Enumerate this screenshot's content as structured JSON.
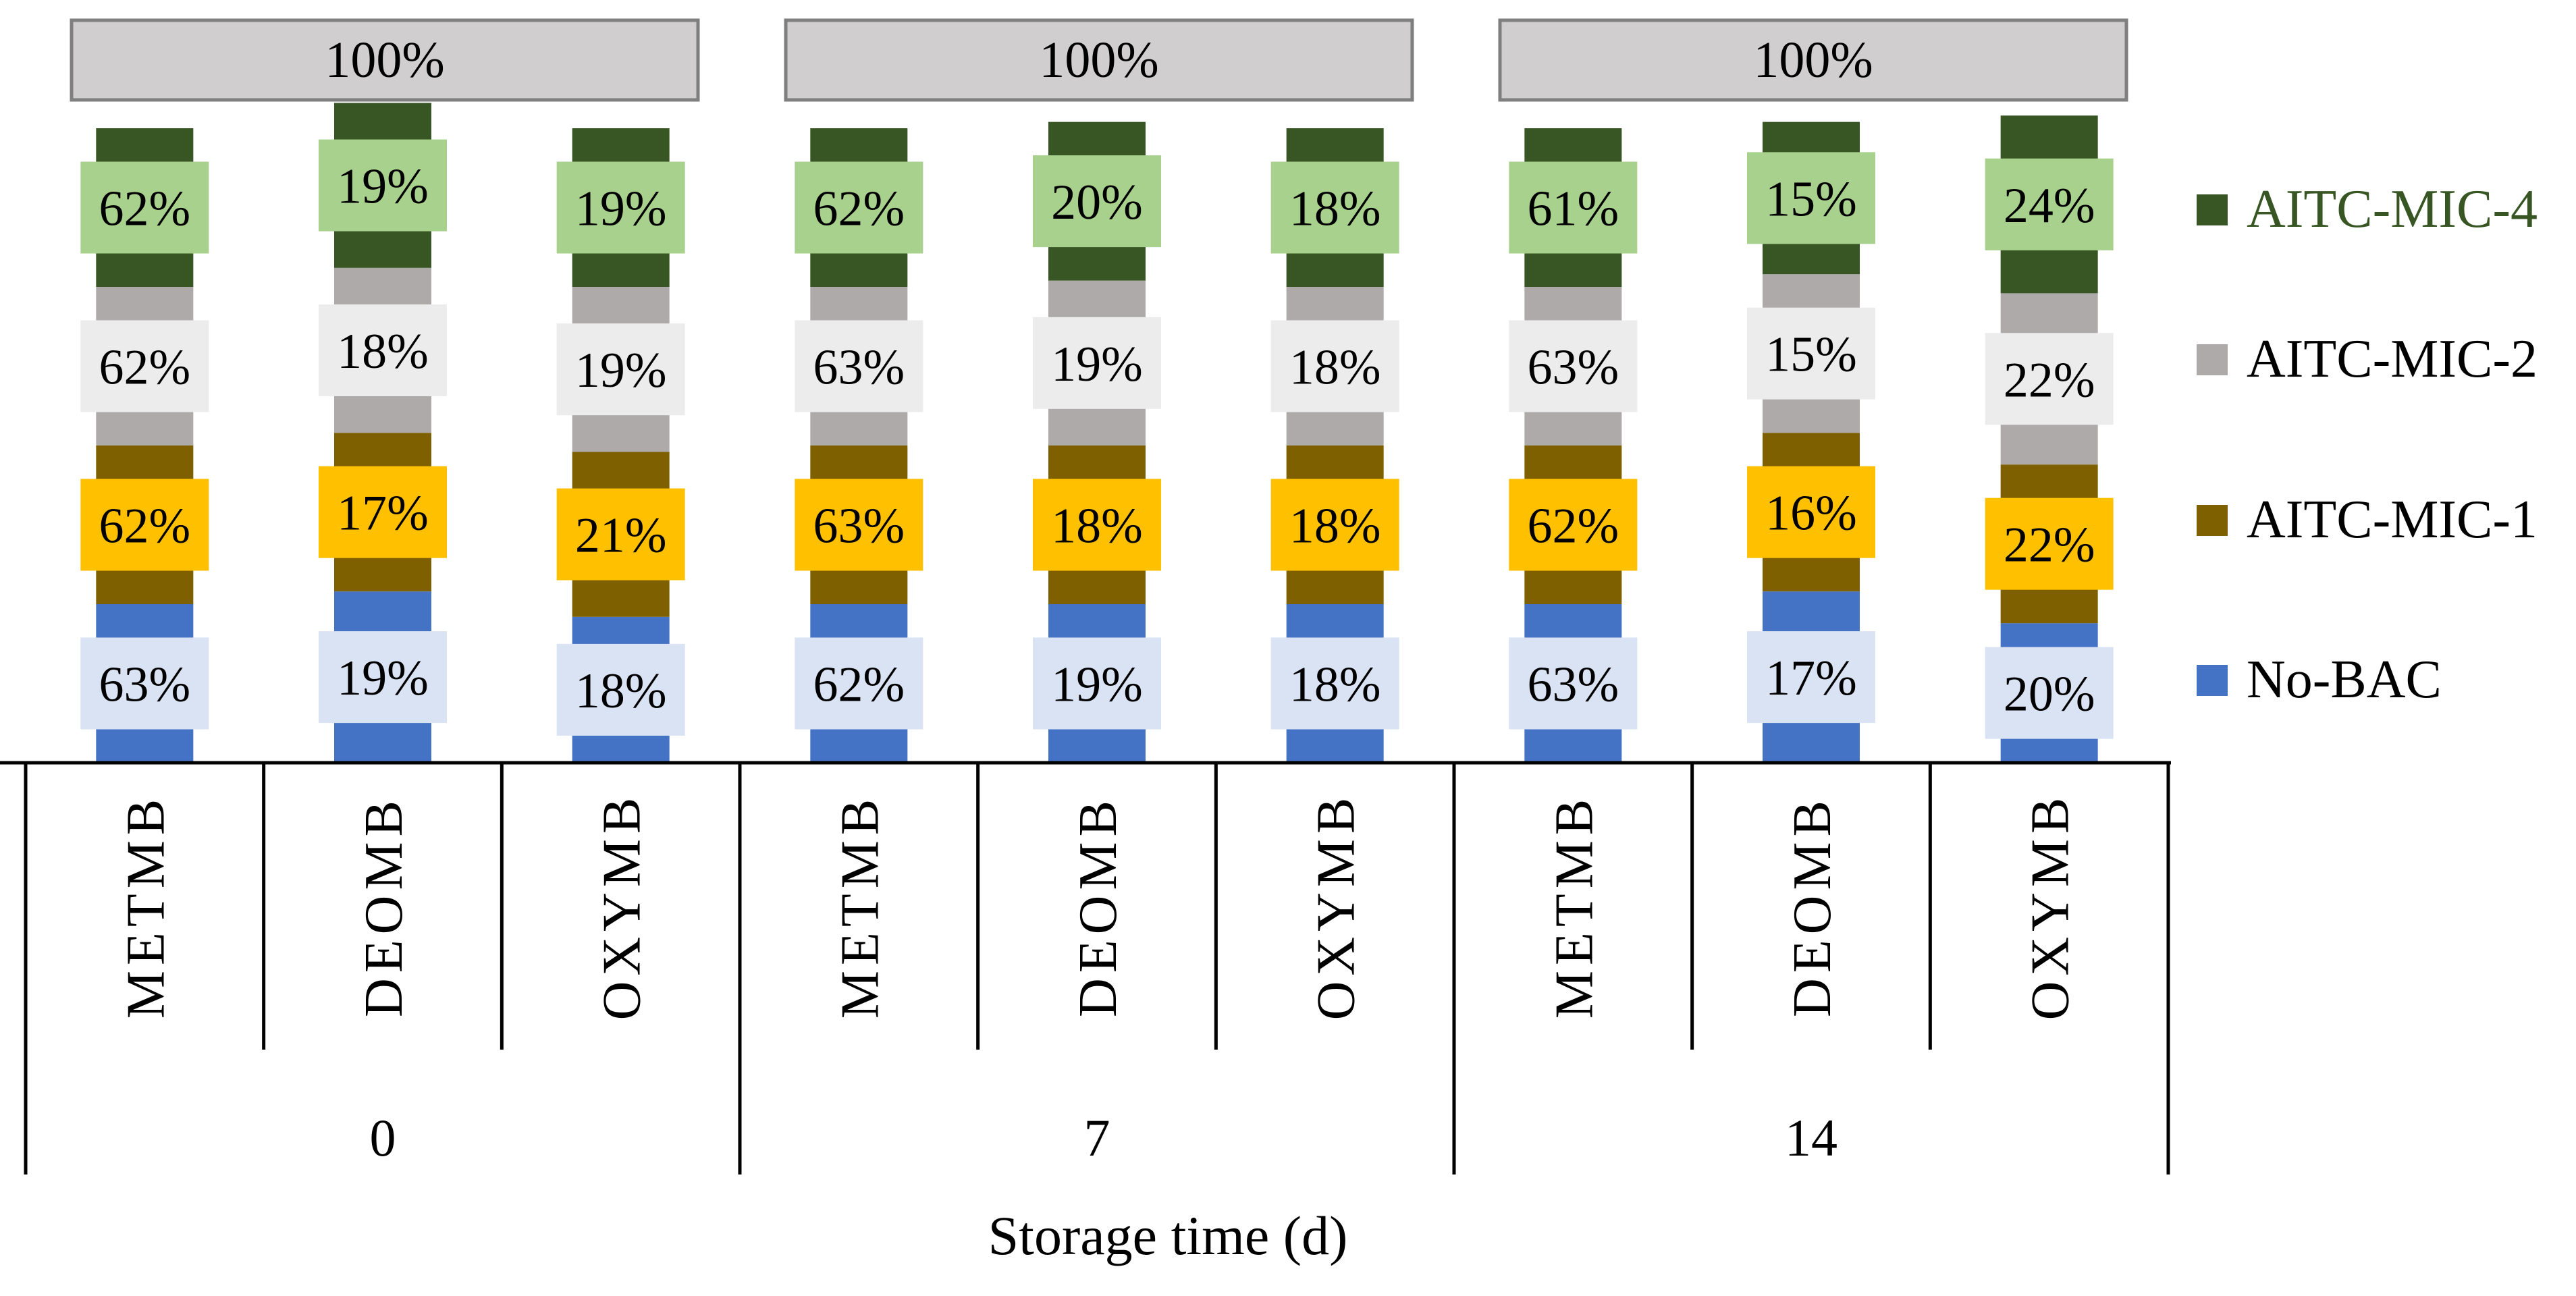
{
  "chart_data": {
    "type": "bar",
    "stacked": true,
    "xlabel": "Storage time (d)",
    "ylabel": "",
    "ylim": [
      0,
      1
    ],
    "grid": false,
    "legend_position": "right",
    "groups": [
      {
        "label": "0",
        "total_label": "100%",
        "categories": [
          "METMB",
          "DEOMB",
          "OXYMB"
        ]
      },
      {
        "label": "7",
        "total_label": "100%",
        "categories": [
          "METMB",
          "DEOMB",
          "OXYMB"
        ]
      },
      {
        "label": "14",
        "total_label": "100%",
        "categories": [
          "METMB",
          "DEOMB",
          "OXYMB"
        ]
      }
    ],
    "series": [
      {
        "name": "No-BAC",
        "color": "#4472c4",
        "label_bg": "#dae3f3",
        "values": [
          0.25,
          0.27,
          0.23,
          0.25,
          0.25,
          0.25,
          0.25,
          0.27,
          0.22
        ],
        "labels": [
          "63%",
          "19%",
          "18%",
          "62%",
          "19%",
          "18%",
          "63%",
          "17%",
          "20%"
        ]
      },
      {
        "name": "AITC-MIC-1",
        "color": "#7f6000",
        "label_bg": "#ffc000",
        "values": [
          0.25,
          0.25,
          0.26,
          0.25,
          0.25,
          0.25,
          0.25,
          0.25,
          0.25
        ],
        "labels": [
          "62%",
          "17%",
          "21%",
          "63%",
          "18%",
          "18%",
          "62%",
          "16%",
          "22%"
        ]
      },
      {
        "name": "AITC-MIC-2",
        "color": "#aeaaaa",
        "label_bg": "#ececec",
        "values": [
          0.25,
          0.26,
          0.26,
          0.25,
          0.26,
          0.25,
          0.25,
          0.25,
          0.27
        ],
        "labels": [
          "62%",
          "18%",
          "19%",
          "63%",
          "19%",
          "18%",
          "63%",
          "15%",
          "22%"
        ]
      },
      {
        "name": "AITC-MIC-4",
        "color": "#375623",
        "label_bg": "#a9d18e",
        "values": [
          0.25,
          0.26,
          0.25,
          0.25,
          0.25,
          0.25,
          0.25,
          0.24,
          0.28
        ],
        "labels": [
          "62%",
          "19%",
          "19%",
          "62%",
          "20%",
          "18%",
          "61%",
          "15%",
          "24%"
        ]
      }
    ]
  },
  "legend": {
    "items": [
      {
        "label": "AITC-MIC-4",
        "color": "#375623",
        "text_color": "#375623"
      },
      {
        "label": "AITC-MIC-2",
        "color": "#aeaaaa",
        "text_color": "#000000"
      },
      {
        "label": "AITC-MIC-1",
        "color": "#7f6000",
        "text_color": "#000000"
      },
      {
        "label": "No-BAC",
        "color": "#4472c4",
        "text_color": "#000000"
      }
    ]
  },
  "colors": {
    "total_box_fill": "#d0cece",
    "total_box_stroke": "#7f7f7f",
    "axis": "#000000"
  }
}
